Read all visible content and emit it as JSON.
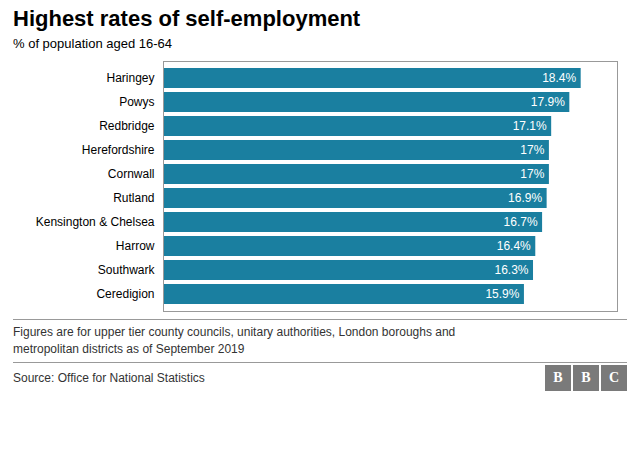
{
  "chart_data": {
    "type": "bar",
    "orientation": "horizontal",
    "title": "Highest rates of self-employment",
    "subtitle": "% of population aged 16-64",
    "categories": [
      "Ceredigion",
      "Southwark",
      "Harrow",
      "Kensington & Chelsea",
      "Rutland",
      "Cornwall",
      "Herefordshire",
      "Redbridge",
      "Powys",
      "Haringey"
    ],
    "values": [
      15.9,
      16.3,
      16.4,
      16.7,
      16.9,
      17.0,
      17.0,
      17.1,
      17.9,
      18.4
    ],
    "value_labels": [
      "15.9%",
      "16.3%",
      "16.4%",
      "16.7%",
      "16.9%",
      "17%",
      "17%",
      "17.1%",
      "17.9%",
      "18.4%"
    ],
    "color": "#1a7fa0",
    "xlim": [
      0,
      20
    ],
    "data_labels": true,
    "tick_labels": "y",
    "grid": false,
    "footnote": "Figures are for upper tier county councils, unitary authorities, London boroughs and\nmetropolitan districts as of September 2019",
    "source": "Source: Office for National Statistics",
    "logo": "BBC"
  }
}
